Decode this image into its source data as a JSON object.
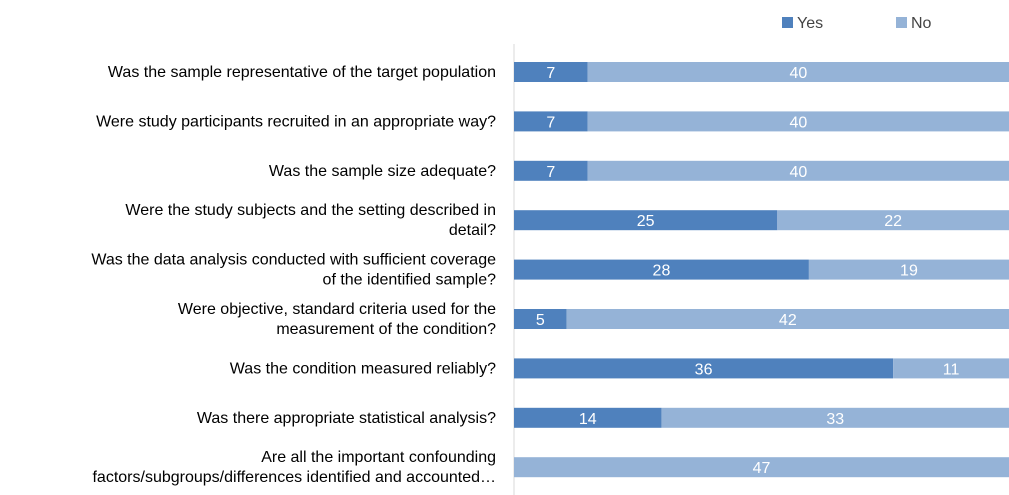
{
  "chart_data": {
    "type": "bar",
    "orientation": "horizontal",
    "stacked": true,
    "categories": [
      [
        "Was the sample representative of the target population"
      ],
      [
        "Were study participants recruited in an appropriate way?"
      ],
      [
        "Was the sample size adequate?"
      ],
      [
        "Were the study subjects and the setting described in",
        "detail?"
      ],
      [
        "Was the data analysis conducted with sufficient coverage",
        "of the identified sample?"
      ],
      [
        "Were objective, standard criteria used for the",
        "measurement of the condition?"
      ],
      [
        "Was the condition measured reliably?"
      ],
      [
        "Was there appropriate statistical analysis?"
      ],
      [
        "Are all the important confounding",
        "factors/subgroups/differences identified and accounted…"
      ]
    ],
    "series": [
      {
        "name": "Yes",
        "color": "#4f81bd",
        "values": [
          7,
          7,
          7,
          25,
          28,
          5,
          36,
          14,
          0
        ]
      },
      {
        "name": "No",
        "color": "#95b3d7",
        "values": [
          40,
          40,
          40,
          22,
          19,
          42,
          11,
          33,
          47
        ]
      }
    ],
    "xlim": [
      0,
      47
    ],
    "legend_position": "top-right",
    "grid": false
  }
}
